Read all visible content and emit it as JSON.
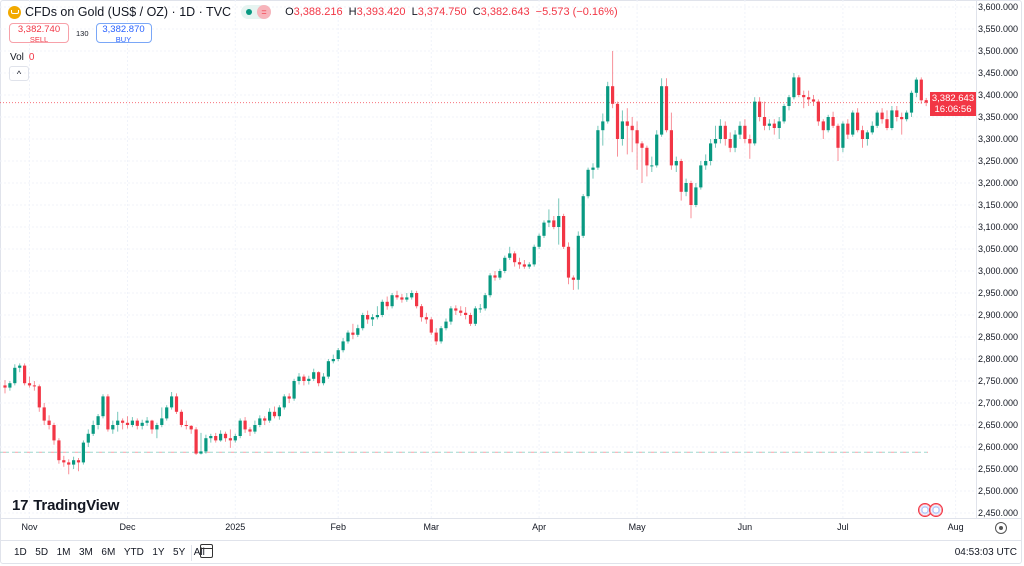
{
  "header": {
    "symbol_title": "CFDs on Gold (US$ / OZ) · 1D · TVC",
    "market_status_icon": "market-open-dot",
    "ohlc": {
      "o_label": "O",
      "o": "3,388.216",
      "h_label": "H",
      "h": "3,393.420",
      "l_label": "L",
      "l": "3,374.750",
      "c_label": "C",
      "c": "3,382.643",
      "change": "−5.573 (−0.16%)"
    }
  },
  "trade": {
    "sell_price": "3,382.740",
    "sell_label": "SELL",
    "spread": "130",
    "buy_price": "3,382.870",
    "buy_label": "BUY"
  },
  "volume": {
    "label": "Vol",
    "value": "0"
  },
  "price_axis": {
    "labels": [
      "3,600.000",
      "3,550.000",
      "3,500.000",
      "3,450.000",
      "3,400.000",
      "3,350.000",
      "3,300.000",
      "3,250.000",
      "3,200.000",
      "3,150.000",
      "3,100.000",
      "3,050.000",
      "3,000.000",
      "2,950.000",
      "2,900.000",
      "2,850.000",
      "2,800.000",
      "2,750.000",
      "2,700.000",
      "2,650.000",
      "2,600.000",
      "2,550.000",
      "2,500.000",
      "2,450.000"
    ],
    "last_price": "3,382.643",
    "countdown": "16:06:56"
  },
  "time_axis": [
    {
      "label": "Nov",
      "at_candle": 5
    },
    {
      "label": "Dec",
      "at_candle": 25
    },
    {
      "label": "2025",
      "at_candle": 47
    },
    {
      "label": "Feb",
      "at_candle": 68
    },
    {
      "label": "Mar",
      "at_candle": 87
    },
    {
      "label": "Apr",
      "at_candle": 109
    },
    {
      "label": "May",
      "at_candle": 129
    },
    {
      "label": "Jun",
      "at_candle": 151
    },
    {
      "label": "Jul",
      "at_candle": 171
    },
    {
      "label": "Aug",
      "at_candle": 194
    }
  ],
  "brand": "TradingView",
  "range_buttons": [
    "1D",
    "5D",
    "1M",
    "3M",
    "6M",
    "YTD",
    "1Y",
    "5Y",
    "All"
  ],
  "clock": "04:53:03 UTC",
  "colors": {
    "up": "#089981",
    "down": "#f23645",
    "grid": "#f0f3fa",
    "text": "#131722"
  },
  "chart_data": {
    "type": "candlestick",
    "ylim": [
      2450,
      3600
    ],
    "grid": true,
    "last_price": 3382.643,
    "horizontal_line": 2588,
    "candles_ohlc": [
      [
        2740,
        2752,
        2722,
        2735
      ],
      [
        2735,
        2750,
        2728,
        2745
      ],
      [
        2745,
        2788,
        2740,
        2780
      ],
      [
        2780,
        2790,
        2770,
        2785
      ],
      [
        2785,
        2790,
        2740,
        2745
      ],
      [
        2745,
        2760,
        2735,
        2740
      ],
      [
        2740,
        2750,
        2728,
        2738
      ],
      [
        2738,
        2742,
        2680,
        2690
      ],
      [
        2690,
        2700,
        2650,
        2660
      ],
      [
        2660,
        2672,
        2640,
        2650
      ],
      [
        2650,
        2655,
        2605,
        2615
      ],
      [
        2615,
        2620,
        2562,
        2570
      ],
      [
        2570,
        2580,
        2555,
        2565
      ],
      [
        2565,
        2572,
        2538,
        2560
      ],
      [
        2560,
        2578,
        2550,
        2570
      ],
      [
        2570,
        2575,
        2545,
        2565
      ],
      [
        2565,
        2615,
        2560,
        2610
      ],
      [
        2610,
        2640,
        2600,
        2630
      ],
      [
        2630,
        2660,
        2625,
        2650
      ],
      [
        2650,
        2675,
        2640,
        2670
      ],
      [
        2670,
        2720,
        2665,
        2715
      ],
      [
        2715,
        2720,
        2635,
        2640
      ],
      [
        2640,
        2660,
        2630,
        2650
      ],
      [
        2650,
        2680,
        2635,
        2660
      ],
      [
        2660,
        2665,
        2640,
        2655
      ],
      [
        2655,
        2670,
        2642,
        2650
      ],
      [
        2650,
        2668,
        2645,
        2660
      ],
      [
        2660,
        2665,
        2640,
        2648
      ],
      [
        2648,
        2662,
        2640,
        2655
      ],
      [
        2655,
        2668,
        2648,
        2660
      ],
      [
        2660,
        2662,
        2630,
        2640
      ],
      [
        2640,
        2655,
        2620,
        2650
      ],
      [
        2650,
        2690,
        2645,
        2665
      ],
      [
        2665,
        2695,
        2660,
        2690
      ],
      [
        2690,
        2725,
        2685,
        2715
      ],
      [
        2715,
        2722,
        2675,
        2680
      ],
      [
        2680,
        2685,
        2645,
        2650
      ],
      [
        2650,
        2660,
        2640,
        2648
      ],
      [
        2648,
        2650,
        2630,
        2640
      ],
      [
        2640,
        2645,
        2582,
        2585
      ],
      [
        2585,
        2632,
        2583,
        2590
      ],
      [
        2590,
        2628,
        2585,
        2620
      ],
      [
        2620,
        2630,
        2610,
        2625
      ],
      [
        2625,
        2632,
        2610,
        2615
      ],
      [
        2615,
        2638,
        2612,
        2630
      ],
      [
        2630,
        2635,
        2612,
        2620
      ],
      [
        2620,
        2640,
        2598,
        2615
      ],
      [
        2615,
        2630,
        2610,
        2625
      ],
      [
        2625,
        2665,
        2620,
        2660
      ],
      [
        2660,
        2668,
        2632,
        2640
      ],
      [
        2640,
        2645,
        2625,
        2635
      ],
      [
        2635,
        2660,
        2630,
        2650
      ],
      [
        2650,
        2672,
        2645,
        2665
      ],
      [
        2665,
        2670,
        2650,
        2660
      ],
      [
        2660,
        2688,
        2655,
        2680
      ],
      [
        2680,
        2692,
        2665,
        2670
      ],
      [
        2670,
        2695,
        2662,
        2690
      ],
      [
        2690,
        2720,
        2685,
        2715
      ],
      [
        2715,
        2722,
        2700,
        2710
      ],
      [
        2710,
        2755,
        2705,
        2750
      ],
      [
        2750,
        2768,
        2742,
        2760
      ],
      [
        2760,
        2765,
        2740,
        2750
      ],
      [
        2750,
        2762,
        2742,
        2755
      ],
      [
        2755,
        2778,
        2750,
        2770
      ],
      [
        2770,
        2772,
        2738,
        2745
      ],
      [
        2745,
        2768,
        2740,
        2760
      ],
      [
        2760,
        2800,
        2755,
        2795
      ],
      [
        2795,
        2810,
        2790,
        2800
      ],
      [
        2800,
        2825,
        2795,
        2820
      ],
      [
        2820,
        2848,
        2815,
        2840
      ],
      [
        2840,
        2865,
        2835,
        2860
      ],
      [
        2860,
        2880,
        2845,
        2855
      ],
      [
        2855,
        2878,
        2850,
        2870
      ],
      [
        2870,
        2905,
        2865,
        2900
      ],
      [
        2900,
        2910,
        2880,
        2890
      ],
      [
        2890,
        2902,
        2875,
        2895
      ],
      [
        2895,
        2920,
        2890,
        2900
      ],
      [
        2900,
        2935,
        2895,
        2930
      ],
      [
        2930,
        2942,
        2912,
        2920
      ],
      [
        2920,
        2950,
        2915,
        2945
      ],
      [
        2945,
        2955,
        2935,
        2940
      ],
      [
        2940,
        2948,
        2928,
        2935
      ],
      [
        2935,
        2950,
        2930,
        2940
      ],
      [
        2940,
        2956,
        2935,
        2950
      ],
      [
        2950,
        2955,
        2915,
        2920
      ],
      [
        2920,
        2925,
        2885,
        2895
      ],
      [
        2895,
        2905,
        2880,
        2890
      ],
      [
        2890,
        2895,
        2855,
        2860
      ],
      [
        2860,
        2870,
        2832,
        2840
      ],
      [
        2840,
        2875,
        2835,
        2870
      ],
      [
        2870,
        2892,
        2865,
        2885
      ],
      [
        2885,
        2920,
        2878,
        2915
      ],
      [
        2915,
        2922,
        2900,
        2910
      ],
      [
        2910,
        2920,
        2898,
        2905
      ],
      [
        2905,
        2918,
        2890,
        2900
      ],
      [
        2900,
        2905,
        2875,
        2880
      ],
      [
        2880,
        2920,
        2875,
        2915
      ],
      [
        2915,
        2925,
        2905,
        2915
      ],
      [
        2915,
        2950,
        2910,
        2945
      ],
      [
        2945,
        2995,
        2940,
        2990
      ],
      [
        2990,
        3000,
        2978,
        2985
      ],
      [
        2985,
        3005,
        2980,
        3000
      ],
      [
        3000,
        3035,
        2995,
        3030
      ],
      [
        3030,
        3055,
        3025,
        3040
      ],
      [
        3040,
        3045,
        3010,
        3020
      ],
      [
        3020,
        3030,
        3005,
        3015
      ],
      [
        3015,
        3025,
        3005,
        3010
      ],
      [
        3010,
        3020,
        3005,
        3015
      ],
      [
        3015,
        3060,
        3010,
        3055
      ],
      [
        3055,
        3085,
        3050,
        3080
      ],
      [
        3080,
        3115,
        3075,
        3110
      ],
      [
        3110,
        3140,
        3100,
        3115
      ],
      [
        3115,
        3125,
        3095,
        3100
      ],
      [
        3100,
        3165,
        3060,
        3125
      ],
      [
        3125,
        3130,
        3050,
        3055
      ],
      [
        3055,
        3065,
        2970,
        2985
      ],
      [
        2985,
        2990,
        2957,
        2980
      ],
      [
        2980,
        3090,
        2958,
        3080
      ],
      [
        3080,
        3175,
        3075,
        3170
      ],
      [
        3170,
        3235,
        3165,
        3230
      ],
      [
        3230,
        3245,
        3210,
        3235
      ],
      [
        3235,
        3330,
        3230,
        3320
      ],
      [
        3320,
        3358,
        3285,
        3340
      ],
      [
        3340,
        3430,
        3335,
        3420
      ],
      [
        3420,
        3500,
        3370,
        3380
      ],
      [
        3380,
        3385,
        3260,
        3300
      ],
      [
        3300,
        3365,
        3285,
        3340
      ],
      [
        3340,
        3370,
        3265,
        3330
      ],
      [
        3330,
        3350,
        3270,
        3320
      ],
      [
        3320,
        3340,
        3230,
        3290
      ],
      [
        3290,
        3295,
        3200,
        3280
      ],
      [
        3280,
        3285,
        3215,
        3240
      ],
      [
        3240,
        3260,
        3225,
        3240
      ],
      [
        3240,
        3320,
        3235,
        3310
      ],
      [
        3310,
        3438,
        3305,
        3420
      ],
      [
        3420,
        3438,
        3315,
        3320
      ],
      [
        3320,
        3360,
        3230,
        3240
      ],
      [
        3240,
        3260,
        3225,
        3250
      ],
      [
        3250,
        3255,
        3160,
        3180
      ],
      [
        3180,
        3210,
        3170,
        3200
      ],
      [
        3200,
        3205,
        3120,
        3150
      ],
      [
        3150,
        3200,
        3145,
        3190
      ],
      [
        3190,
        3250,
        3185,
        3240
      ],
      [
        3240,
        3265,
        3230,
        3250
      ],
      [
        3250,
        3300,
        3240,
        3290
      ],
      [
        3290,
        3330,
        3280,
        3300
      ],
      [
        3300,
        3345,
        3290,
        3330
      ],
      [
        3330,
        3340,
        3285,
        3300
      ],
      [
        3300,
        3315,
        3270,
        3280
      ],
      [
        3280,
        3320,
        3270,
        3310
      ],
      [
        3310,
        3340,
        3300,
        3330
      ],
      [
        3330,
        3345,
        3290,
        3300
      ],
      [
        3300,
        3310,
        3255,
        3290
      ],
      [
        3290,
        3395,
        3285,
        3385
      ],
      [
        3385,
        3395,
        3340,
        3350
      ],
      [
        3350,
        3385,
        3320,
        3330
      ],
      [
        3330,
        3345,
        3320,
        3335
      ],
      [
        3335,
        3345,
        3310,
        3325
      ],
      [
        3325,
        3350,
        3300,
        3340
      ],
      [
        3340,
        3380,
        3335,
        3375
      ],
      [
        3375,
        3400,
        3365,
        3395
      ],
      [
        3395,
        3450,
        3390,
        3440
      ],
      [
        3440,
        3445,
        3395,
        3400
      ],
      [
        3400,
        3410,
        3370,
        3395
      ],
      [
        3395,
        3410,
        3375,
        3390
      ],
      [
        3390,
        3400,
        3375,
        3385
      ],
      [
        3385,
        3390,
        3330,
        3340
      ],
      [
        3340,
        3345,
        3300,
        3320
      ],
      [
        3320,
        3355,
        3315,
        3350
      ],
      [
        3350,
        3362,
        3325,
        3330
      ],
      [
        3330,
        3335,
        3250,
        3280
      ],
      [
        3280,
        3340,
        3270,
        3335
      ],
      [
        3335,
        3345,
        3300,
        3310
      ],
      [
        3310,
        3365,
        3305,
        3360
      ],
      [
        3360,
        3370,
        3315,
        3320
      ],
      [
        3320,
        3330,
        3280,
        3300
      ],
      [
        3300,
        3320,
        3285,
        3315
      ],
      [
        3315,
        3340,
        3310,
        3330
      ],
      [
        3330,
        3365,
        3325,
        3360
      ],
      [
        3360,
        3370,
        3335,
        3345
      ],
      [
        3345,
        3365,
        3320,
        3325
      ],
      [
        3325,
        3375,
        3320,
        3365
      ],
      [
        3365,
        3375,
        3340,
        3350
      ],
      [
        3350,
        3360,
        3310,
        3345
      ],
      [
        3345,
        3365,
        3340,
        3360
      ],
      [
        3360,
        3410,
        3350,
        3405
      ],
      [
        3405,
        3440,
        3395,
        3435
      ],
      [
        3435,
        3440,
        3380,
        3388
      ],
      [
        3388.216,
        3393.42,
        3374.75,
        3382.643
      ]
    ]
  }
}
